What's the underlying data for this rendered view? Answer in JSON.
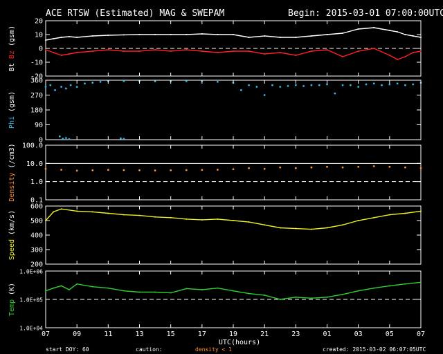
{
  "header": {
    "title": "ACE RTSW (Estimated) MAG & SWEPAM",
    "begin": "Begin: 2015-03-01 07:00:00UTC"
  },
  "footer": {
    "start_doy": "start DOY:  60",
    "caution": "caution:",
    "density_note": "density < 1",
    "created": "created: 2015-03-02 06:07:05UTC"
  },
  "colors": {
    "bt": "#ffffff",
    "bz": "#ff2020",
    "phi": "#30b8e8",
    "density": "#ff9030",
    "speed": "#f0f020",
    "temp": "#30d030"
  },
  "chart_data": {
    "type": "line",
    "xlabel": "UTC(hours)",
    "xtick_labels": [
      "07",
      "09",
      "11",
      "13",
      "15",
      "17",
      "19",
      "21",
      "23",
      "01",
      "03",
      "05",
      "07"
    ],
    "x_hours": [
      0,
      2,
      4,
      6,
      8,
      10,
      12,
      14,
      16,
      18,
      20,
      22,
      24
    ],
    "panels": [
      {
        "id": "mag",
        "ylabel_parts": [
          "Bt",
          "Bz",
          "(gsm)"
        ],
        "scale": "linear",
        "ylim": [
          -20,
          20
        ],
        "ytick_values": [
          -20,
          -10,
          0,
          10,
          20
        ],
        "ytick_labels": [
          "-20",
          "-10",
          "0",
          "10",
          "20"
        ],
        "dashed_ref": [
          0
        ],
        "series": [
          {
            "name": "Bt",
            "color": "#ffffff",
            "style": "line",
            "x": [
              0,
              0.5,
              1,
              1.5,
              2,
              3,
              4,
              5,
              6,
              7,
              8,
              9,
              10,
              11,
              12,
              13,
              14,
              15,
              16,
              17,
              18,
              19,
              20,
              21,
              22,
              22.5,
              23,
              23.5,
              24
            ],
            "y": [
              6,
              7,
              8,
              8.5,
              8,
              9,
              9.5,
              9.8,
              10,
              10,
              10,
              10,
              10.5,
              10,
              10,
              8,
              9,
              8,
              8,
              9,
              10,
              11,
              14,
              15,
              13,
              12,
              10,
              9,
              8
            ]
          },
          {
            "name": "Bz",
            "color": "#ff2020",
            "style": "line",
            "x": [
              0,
              0.5,
              1,
              1.5,
              2,
              3,
              4,
              5,
              6,
              7,
              8,
              9,
              10,
              11,
              12,
              13,
              14,
              15,
              16,
              17,
              18,
              19,
              20,
              21,
              22,
              22.5,
              23,
              23.5,
              24
            ],
            "y": [
              -1,
              -3,
              -5,
              -4,
              -3,
              -2,
              -1,
              -2,
              -2,
              -1,
              -2,
              -1,
              -2,
              -3,
              -2,
              -2,
              -4,
              -3,
              -5,
              -2,
              -1,
              -6,
              -2,
              0,
              -5,
              -8,
              -6,
              -3,
              -2
            ]
          }
        ]
      },
      {
        "id": "phi",
        "ylabel_parts": [
          "Phi",
          "(gsm)"
        ],
        "scale": "linear",
        "ylim": [
          0,
          360
        ],
        "ytick_values": [
          0,
          90,
          180,
          270,
          360
        ],
        "ytick_labels": [
          "0",
          "90",
          "180",
          "270",
          "360"
        ],
        "series": [
          {
            "name": "Phi",
            "color": "#30b8e8",
            "style": "points",
            "x": [
              0,
              0.3,
              0.6,
              1,
              1.3,
              1.6,
              2,
              2.5,
              3,
              3.5,
              4,
              5,
              6,
              7,
              8,
              9,
              10,
              11,
              12,
              12.5,
              13,
              13.5,
              14,
              14.5,
              15,
              15.5,
              16,
              16.5,
              17,
              17.5,
              18,
              18.5,
              19,
              19.5,
              20,
              20.5,
              21,
              21.5,
              22,
              22.5,
              23,
              23.5,
              24,
              0.9,
              1.1,
              1.3,
              1.5,
              4.8,
              5.0
            ],
            "y": [
              320,
              330,
              300,
              320,
              310,
              330,
              320,
              340,
              345,
              350,
              355,
              355,
              354,
              353,
              355,
              354,
              355,
              350,
              345,
              300,
              330,
              320,
              270,
              330,
              320,
              325,
              330,
              325,
              330,
              330,
              335,
              280,
              330,
              330,
              320,
              335,
              340,
              330,
              335,
              340,
              330,
              335,
              345,
              20,
              5,
              10,
              3,
              8,
              5
            ]
          }
        ]
      },
      {
        "id": "density",
        "ylabel_parts": [
          "Density",
          "(/cm3)"
        ],
        "scale": "log",
        "ylim": [
          0.1,
          100
        ],
        "ytick_values": [
          0.1,
          1,
          10,
          100
        ],
        "ytick_labels": [
          "0.1",
          "1.0",
          "10.0",
          "100.0"
        ],
        "dashed_ref": [
          1
        ],
        "solid_ref": [
          10
        ],
        "series": [
          {
            "name": "Density",
            "color": "#ff9030",
            "style": "points",
            "x": [
              0,
              1,
              2,
              3,
              4,
              5,
              6,
              7,
              8,
              9,
              10,
              11,
              12,
              13,
              14,
              15,
              16,
              17,
              18,
              19,
              20,
              21,
              22,
              23,
              24
            ],
            "y": [
              5,
              4.5,
              4,
              4.2,
              4.4,
              4.3,
              4.2,
              4.1,
              4.2,
              4.3,
              4.4,
              4.5,
              4.8,
              5.5,
              5,
              6,
              5.5,
              6,
              6.5,
              6,
              6.5,
              7,
              6.5,
              6,
              5.5
            ]
          }
        ]
      },
      {
        "id": "speed",
        "ylabel_parts": [
          "Speed",
          "(km/s)"
        ],
        "scale": "linear",
        "ylim": [
          200,
          600
        ],
        "ytick_values": [
          200,
          300,
          400,
          500,
          600
        ],
        "ytick_labels": [
          "200",
          "300",
          "400",
          "500",
          "600"
        ],
        "series": [
          {
            "name": "Speed",
            "color": "#f0f020",
            "style": "line",
            "x": [
              0,
              0.5,
              1,
              2,
              3,
              4,
              5,
              6,
              7,
              8,
              9,
              10,
              11,
              12,
              13,
              14,
              15,
              16,
              17,
              18,
              19,
              20,
              21,
              22,
              23,
              24
            ],
            "y": [
              500,
              560,
              580,
              565,
              560,
              550,
              540,
              535,
              525,
              520,
              510,
              505,
              510,
              500,
              490,
              470,
              450,
              445,
              440,
              450,
              470,
              500,
              520,
              540,
              550,
              565
            ]
          }
        ]
      },
      {
        "id": "temp",
        "ylabel_parts": [
          "Temp",
          "(K)"
        ],
        "scale": "log",
        "ylim": [
          10000,
          1000000
        ],
        "ytick_values": [
          10000,
          100000,
          1000000
        ],
        "ytick_labels": [
          "1.0E+04",
          "1.0E+05",
          "1.0E+06"
        ],
        "dashed_ref": [
          100000
        ],
        "series": [
          {
            "name": "Temp",
            "color": "#30d030",
            "style": "line",
            "x": [
              0,
              0.5,
              1,
              1.5,
              2,
              3,
              4,
              5,
              6,
              7,
              8,
              9,
              10,
              11,
              12,
              13,
              14,
              15,
              16,
              17,
              18,
              19,
              20,
              21,
              22,
              23,
              24
            ],
            "y": [
              200000,
              250000,
              300000,
              220000,
              350000,
              280000,
              250000,
              200000,
              180000,
              180000,
              170000,
              240000,
              220000,
              250000,
              200000,
              160000,
              140000,
              100000,
              120000,
              110000,
              120000,
              150000,
              200000,
              250000,
              300000,
              350000,
              400000
            ]
          }
        ]
      }
    ]
  }
}
